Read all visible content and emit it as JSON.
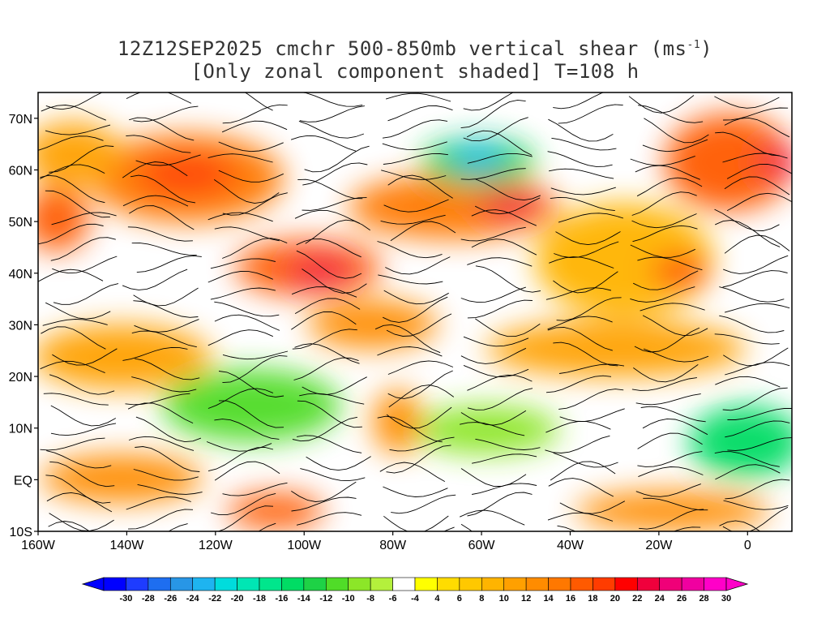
{
  "title": {
    "line1_prefix": "12Z12SEP2025 cmchr 500-850mb vertical shear (ms",
    "line1_sup": "-1",
    "line1_suffix": ")",
    "line2": "[Only zonal component shaded] T=108 h"
  },
  "map": {
    "lat_labels": [
      "70N",
      "60N",
      "50N",
      "40N",
      "30N",
      "20N",
      "10N",
      "EQ",
      "10S"
    ],
    "lat_values": [
      70,
      60,
      50,
      40,
      30,
      20,
      10,
      0,
      -10
    ],
    "lon_labels": [
      "160W",
      "140W",
      "120W",
      "100W",
      "80W",
      "60W",
      "40W",
      "20W",
      "0"
    ],
    "lon_values": [
      -160,
      -140,
      -120,
      -100,
      -80,
      -60,
      -40,
      -20,
      0
    ],
    "lon_range": [
      -160,
      10
    ],
    "lat_range": [
      -10,
      75
    ]
  },
  "colorbar": {
    "labels": [
      "-30",
      "-28",
      "-26",
      "-24",
      "-22",
      "-20",
      "-18",
      "-16",
      "-14",
      "-12",
      "-10",
      "-8",
      "-6",
      "-4",
      "4",
      "6",
      "8",
      "10",
      "12",
      "14",
      "16",
      "18",
      "20",
      "22",
      "24",
      "26",
      "28",
      "30"
    ],
    "colors": [
      "#0000ff",
      "#1e3cff",
      "#1e6ef0",
      "#2896e6",
      "#1eb4f0",
      "#00dcdc",
      "#00e6b4",
      "#00e68c",
      "#00dc64",
      "#1ed246",
      "#50dc28",
      "#8ce628",
      "#b4f03c",
      "#ffffff",
      "#ffff00",
      "#ffdc00",
      "#ffc800",
      "#ffb400",
      "#ffa000",
      "#ff8c00",
      "#ff7800",
      "#ff5a00",
      "#ff3c00",
      "#ff0000",
      "#f0003c",
      "#f00078",
      "#f000a0",
      "#ff00c8"
    ],
    "min_color": "#0000ff",
    "max_color": "#ff00c8"
  }
}
